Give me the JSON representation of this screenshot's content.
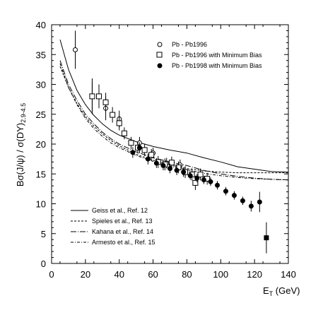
{
  "chart_data": {
    "type": "scatter",
    "xlabel": "E_T (GeV)",
    "xlabel_main": "E",
    "xlabel_sub": "T",
    "xlabel_unit": " (GeV)",
    "ylabel": "Bσ(J/ψ) / σ(DY)_{2.9-4.5}",
    "ylabel_main": "Bσ(J/ψ) / σ(DY)",
    "ylabel_sub": "2.9-4.5",
    "xlim": [
      0,
      140
    ],
    "ylim": [
      0,
      40
    ],
    "xticks": [
      0,
      20,
      40,
      60,
      80,
      100,
      120,
      140
    ],
    "yticks": [
      0,
      5,
      10,
      15,
      20,
      25,
      30,
      35,
      40
    ],
    "grid": false,
    "legend_top_position": "top-right",
    "legend_bottom_position": "bottom-left",
    "series": [
      {
        "name": "Pb - Pb1996",
        "marker": "open-circle",
        "points": [
          [
            14,
            35.8,
            3.2
          ],
          [
            24,
            28,
            3
          ],
          [
            32,
            26,
            2
          ],
          [
            40,
            24.2,
            1.4
          ],
          [
            52,
            20.2,
            1
          ],
          [
            60,
            18.5,
            0.9
          ],
          [
            68,
            16.8,
            0.9
          ],
          [
            76,
            16.5,
            0.9
          ]
        ]
      },
      {
        "name": "Pb - Pb1996 with Minimum Bias",
        "marker": "open-square",
        "points": [
          [
            24,
            28,
            2.4
          ],
          [
            28,
            28,
            2
          ],
          [
            32,
            27,
            1.6
          ],
          [
            36,
            24.9,
            1.3
          ],
          [
            40,
            23.5,
            1.2
          ],
          [
            43,
            21.8,
            1
          ],
          [
            47,
            20.2,
            1
          ],
          [
            51,
            19.4,
            1
          ],
          [
            55,
            19,
            1
          ],
          [
            59,
            18.2,
            1
          ],
          [
            63,
            17,
            1
          ],
          [
            67,
            16.6,
            1
          ],
          [
            71,
            16.9,
            1
          ],
          [
            75,
            16.1,
            1
          ],
          [
            79,
            15.3,
            1
          ],
          [
            83,
            14.9,
            1
          ],
          [
            85,
            13.5,
            1.2
          ],
          [
            88,
            14.9,
            1
          ],
          [
            92,
            14.2,
            1
          ]
        ]
      },
      {
        "name": "Pb - Pb1998 with Minimum Bias",
        "marker": "filled-circle",
        "points": [
          [
            48,
            18.6,
            0.9
          ],
          [
            52,
            19.4,
            0.9
          ],
          [
            57,
            17.5,
            0.9
          ],
          [
            62,
            16.8,
            0.8
          ],
          [
            66,
            16.4,
            0.8
          ],
          [
            70,
            15.9,
            0.8
          ],
          [
            74,
            15.6,
            0.8
          ],
          [
            78,
            15.3,
            0.8
          ],
          [
            82,
            14.7,
            0.7
          ],
          [
            86,
            14.3,
            0.7
          ],
          [
            90,
            14,
            0.7
          ],
          [
            94,
            13.7,
            0.7
          ],
          [
            98,
            13.1,
            0.7
          ],
          [
            103,
            12.1,
            0.7
          ],
          [
            108,
            11.4,
            0.7
          ],
          [
            113,
            10.5,
            0.7
          ],
          [
            118,
            9.6,
            0.9
          ],
          [
            123,
            10.3,
            1.7
          ]
        ]
      },
      {
        "name": "Pb - Pb1998 with Minimum Bias (last)",
        "marker": "filled-square",
        "points": [
          [
            127,
            4.3,
            2.6
          ]
        ]
      }
    ],
    "curves": [
      {
        "name": "Geiss et al., Ref. 12",
        "style": "solid",
        "x": [
          5,
          10,
          15,
          20,
          25,
          30,
          35,
          40,
          50,
          60,
          70,
          80,
          90,
          100,
          110,
          120,
          130,
          140
        ],
        "y": [
          37.5,
          32.5,
          29,
          26.6,
          24.8,
          23.4,
          22.3,
          21.5,
          20.4,
          19.6,
          19,
          18.5,
          17.7,
          17,
          16.2,
          15.8,
          15.4,
          15.3
        ]
      },
      {
        "name": "Spieles et al., Ref. 13",
        "style": "dashed",
        "x": [
          5,
          10,
          15,
          20,
          25,
          30,
          35,
          40,
          50,
          60,
          70,
          80,
          90,
          100,
          110,
          120,
          130,
          140
        ],
        "y": [
          33,
          29.5,
          26.8,
          24.6,
          23,
          21.7,
          20.6,
          19.7,
          18.3,
          17.3,
          16.5,
          15.9,
          15.5,
          15.3,
          15.2,
          15.2,
          15.2,
          15.2
        ]
      },
      {
        "name": "Kahana et al., Ref. 14",
        "style": "long-dash-dot",
        "x": [
          5,
          10,
          15,
          20,
          25,
          30,
          35,
          40,
          50,
          60,
          70,
          80,
          90,
          100,
          110,
          120,
          130,
          140
        ],
        "y": [
          34,
          30,
          27.3,
          25,
          23.4,
          22,
          20.9,
          20,
          18.7,
          17.7,
          17,
          16.4,
          15.6,
          15,
          14.6,
          14.3,
          14.1,
          14
        ]
      },
      {
        "name": "Armesto et al., Ref. 15",
        "style": "dash-dot",
        "x": [
          5,
          10,
          15,
          20,
          25,
          30,
          35,
          40,
          50,
          60,
          70,
          80,
          90,
          100,
          110,
          120,
          130,
          140
        ],
        "y": [
          33.5,
          29.5,
          26.6,
          24.3,
          22.6,
          21.3,
          20.2,
          19.4,
          18.1,
          17.1,
          16.3,
          15.7,
          15.1,
          14.7,
          14.4,
          14.2,
          14.1,
          14
        ]
      }
    ]
  }
}
